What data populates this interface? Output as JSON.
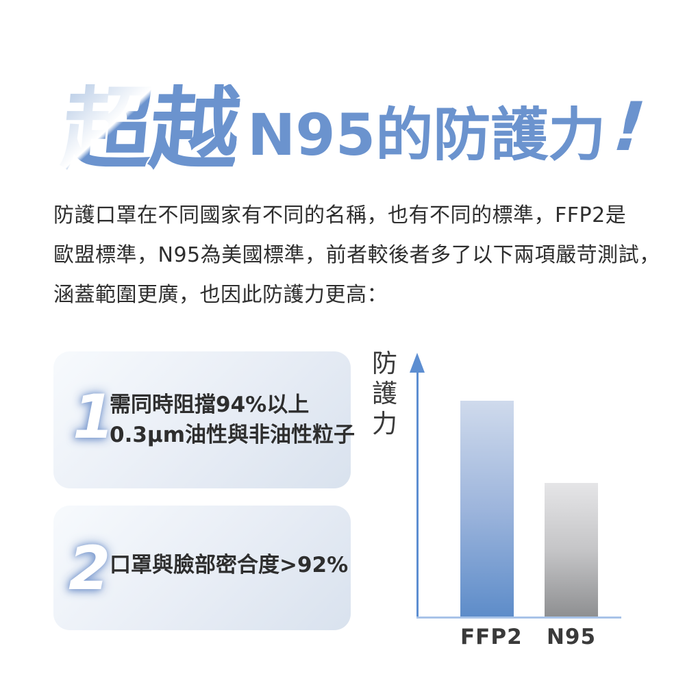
{
  "title": {
    "fancy": "超越",
    "main": "N95的防護力",
    "bang": "!",
    "accent_color": "#6b93ce"
  },
  "intro": {
    "lines": [
      "防護口罩在不同國家有不同的名稱，也有不同的標準，FFP2是",
      "歐盟標準，N95為美國標準，前者較後者多了以下兩項嚴苛測試，",
      "涵蓋範圍更廣，也因此防護力更高："
    ]
  },
  "cards": [
    {
      "number": "1",
      "lines": [
        "需同時阻擋94%以上",
        "0.3μm油性與非油性粒子"
      ]
    },
    {
      "number": "2",
      "lines": [
        "口罩與臉部密合度>92%"
      ]
    }
  ],
  "chart_data": {
    "type": "bar",
    "categories": [
      "FFP2",
      "N95"
    ],
    "values": [
      100,
      62
    ],
    "title": "",
    "xlabel": "",
    "ylabel": "防護力",
    "ylabel_chars": [
      "防",
      "護",
      "力"
    ],
    "ylim": [
      0,
      100
    ],
    "grid": false,
    "legend": "none",
    "axis_color": "#5d8ed1",
    "baseline_color": "#a8c3e8",
    "bar_gradients": [
      [
        "#cfdaec",
        "#9db5dc",
        "#5d8cc9"
      ],
      [
        "#e5e5e7",
        "#c5c5c7",
        "#8e8f91"
      ]
    ],
    "note": "qualitative comparison: FFP2 protection higher than N95"
  }
}
